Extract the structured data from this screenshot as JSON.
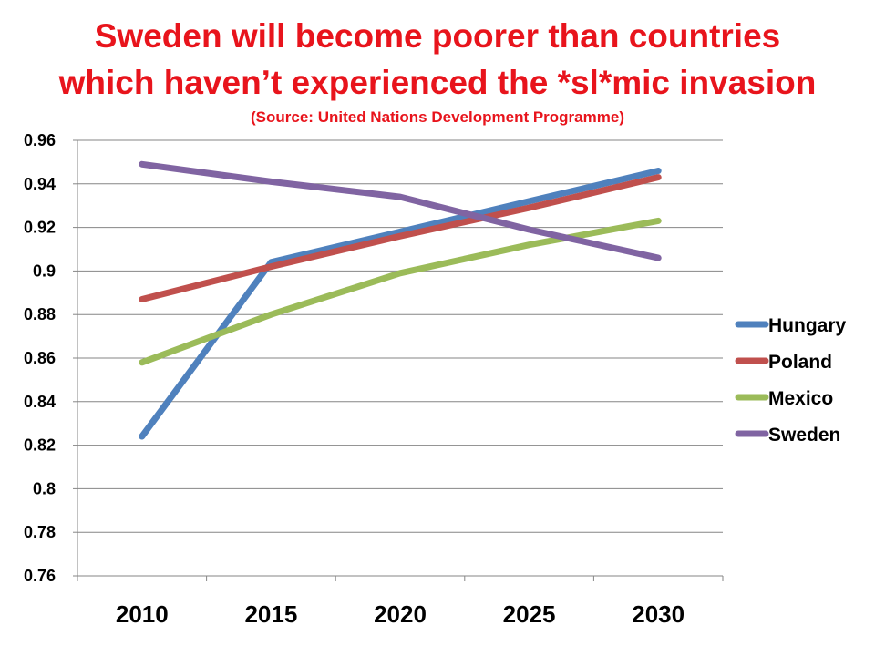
{
  "title_lines": [
    "Sweden will become poorer than countries",
    "which haven’t experienced the *sl*mic invasion"
  ],
  "subtitle": "(Source: United Nations Development Programme)",
  "chart_data": {
    "type": "line",
    "title": "Sweden will become poorer than countries which haven’t experienced the *sl*mic invasion",
    "subtitle": "(Source: United Nations Development Programme)",
    "categories": [
      "2010",
      "2015",
      "2020",
      "2025",
      "2030"
    ],
    "ylim": [
      0.76,
      0.96
    ],
    "yticks": [
      "0.96",
      "0.94",
      "0.92",
      "0.9",
      "0.88",
      "0.86",
      "0.84",
      "0.82",
      "0.8",
      "0.78",
      "0.76"
    ],
    "grid": true,
    "legend_position": "right",
    "series": [
      {
        "name": "Hungary",
        "color": "#4f81bd",
        "values": [
          0.824,
          0.904,
          0.918,
          0.932,
          0.946
        ]
      },
      {
        "name": "Poland",
        "color": "#c0504d",
        "values": [
          0.887,
          0.902,
          0.916,
          0.929,
          0.943
        ]
      },
      {
        "name": "Mexico",
        "color": "#9bbb59",
        "values": [
          0.858,
          0.88,
          0.899,
          0.912,
          0.923
        ]
      },
      {
        "name": "Sweden",
        "color": "#8064a2",
        "values": [
          0.949,
          0.941,
          0.934,
          0.919,
          0.906
        ]
      }
    ]
  }
}
